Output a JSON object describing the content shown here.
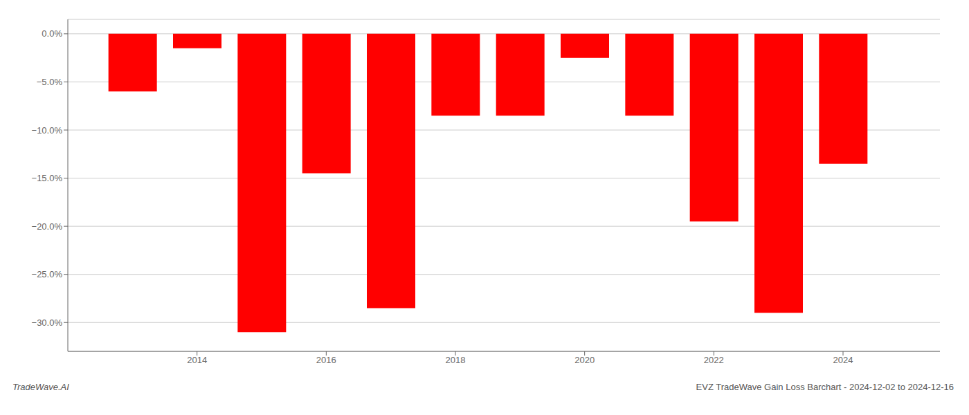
{
  "chart_data": {
    "type": "bar",
    "x": [
      2013,
      2014,
      2015,
      2016,
      2017,
      2018,
      2019,
      2020,
      2021,
      2022,
      2023,
      2024
    ],
    "values": [
      -6.0,
      -1.5,
      -31.0,
      -14.5,
      -28.5,
      -8.5,
      -8.5,
      -2.5,
      -8.5,
      -19.5,
      -29.0,
      -13.5
    ],
    "color": "#ff0000",
    "xlim": [
      2012.0,
      2025.5
    ],
    "xticks": [
      2014,
      2016,
      2018,
      2020,
      2022,
      2024
    ],
    "ylim": [
      -33,
      1.5
    ],
    "yticks": [
      {
        "value": 0.0,
        "label": "0.0%"
      },
      {
        "value": -5.0,
        "label": "−5.0%"
      },
      {
        "value": -10.0,
        "label": "−10.0%"
      },
      {
        "value": -15.0,
        "label": "−15.0%"
      },
      {
        "value": -20.0,
        "label": "−20.0%"
      },
      {
        "value": -25.0,
        "label": "−25.0%"
      },
      {
        "value": -30.0,
        "label": "−30.0%"
      }
    ],
    "grid": true,
    "annotations": [
      "TradeWave.AI",
      "EVZ TradeWave Gain Loss Barchart - 2024-12-02 to 2024-12-16"
    ]
  }
}
